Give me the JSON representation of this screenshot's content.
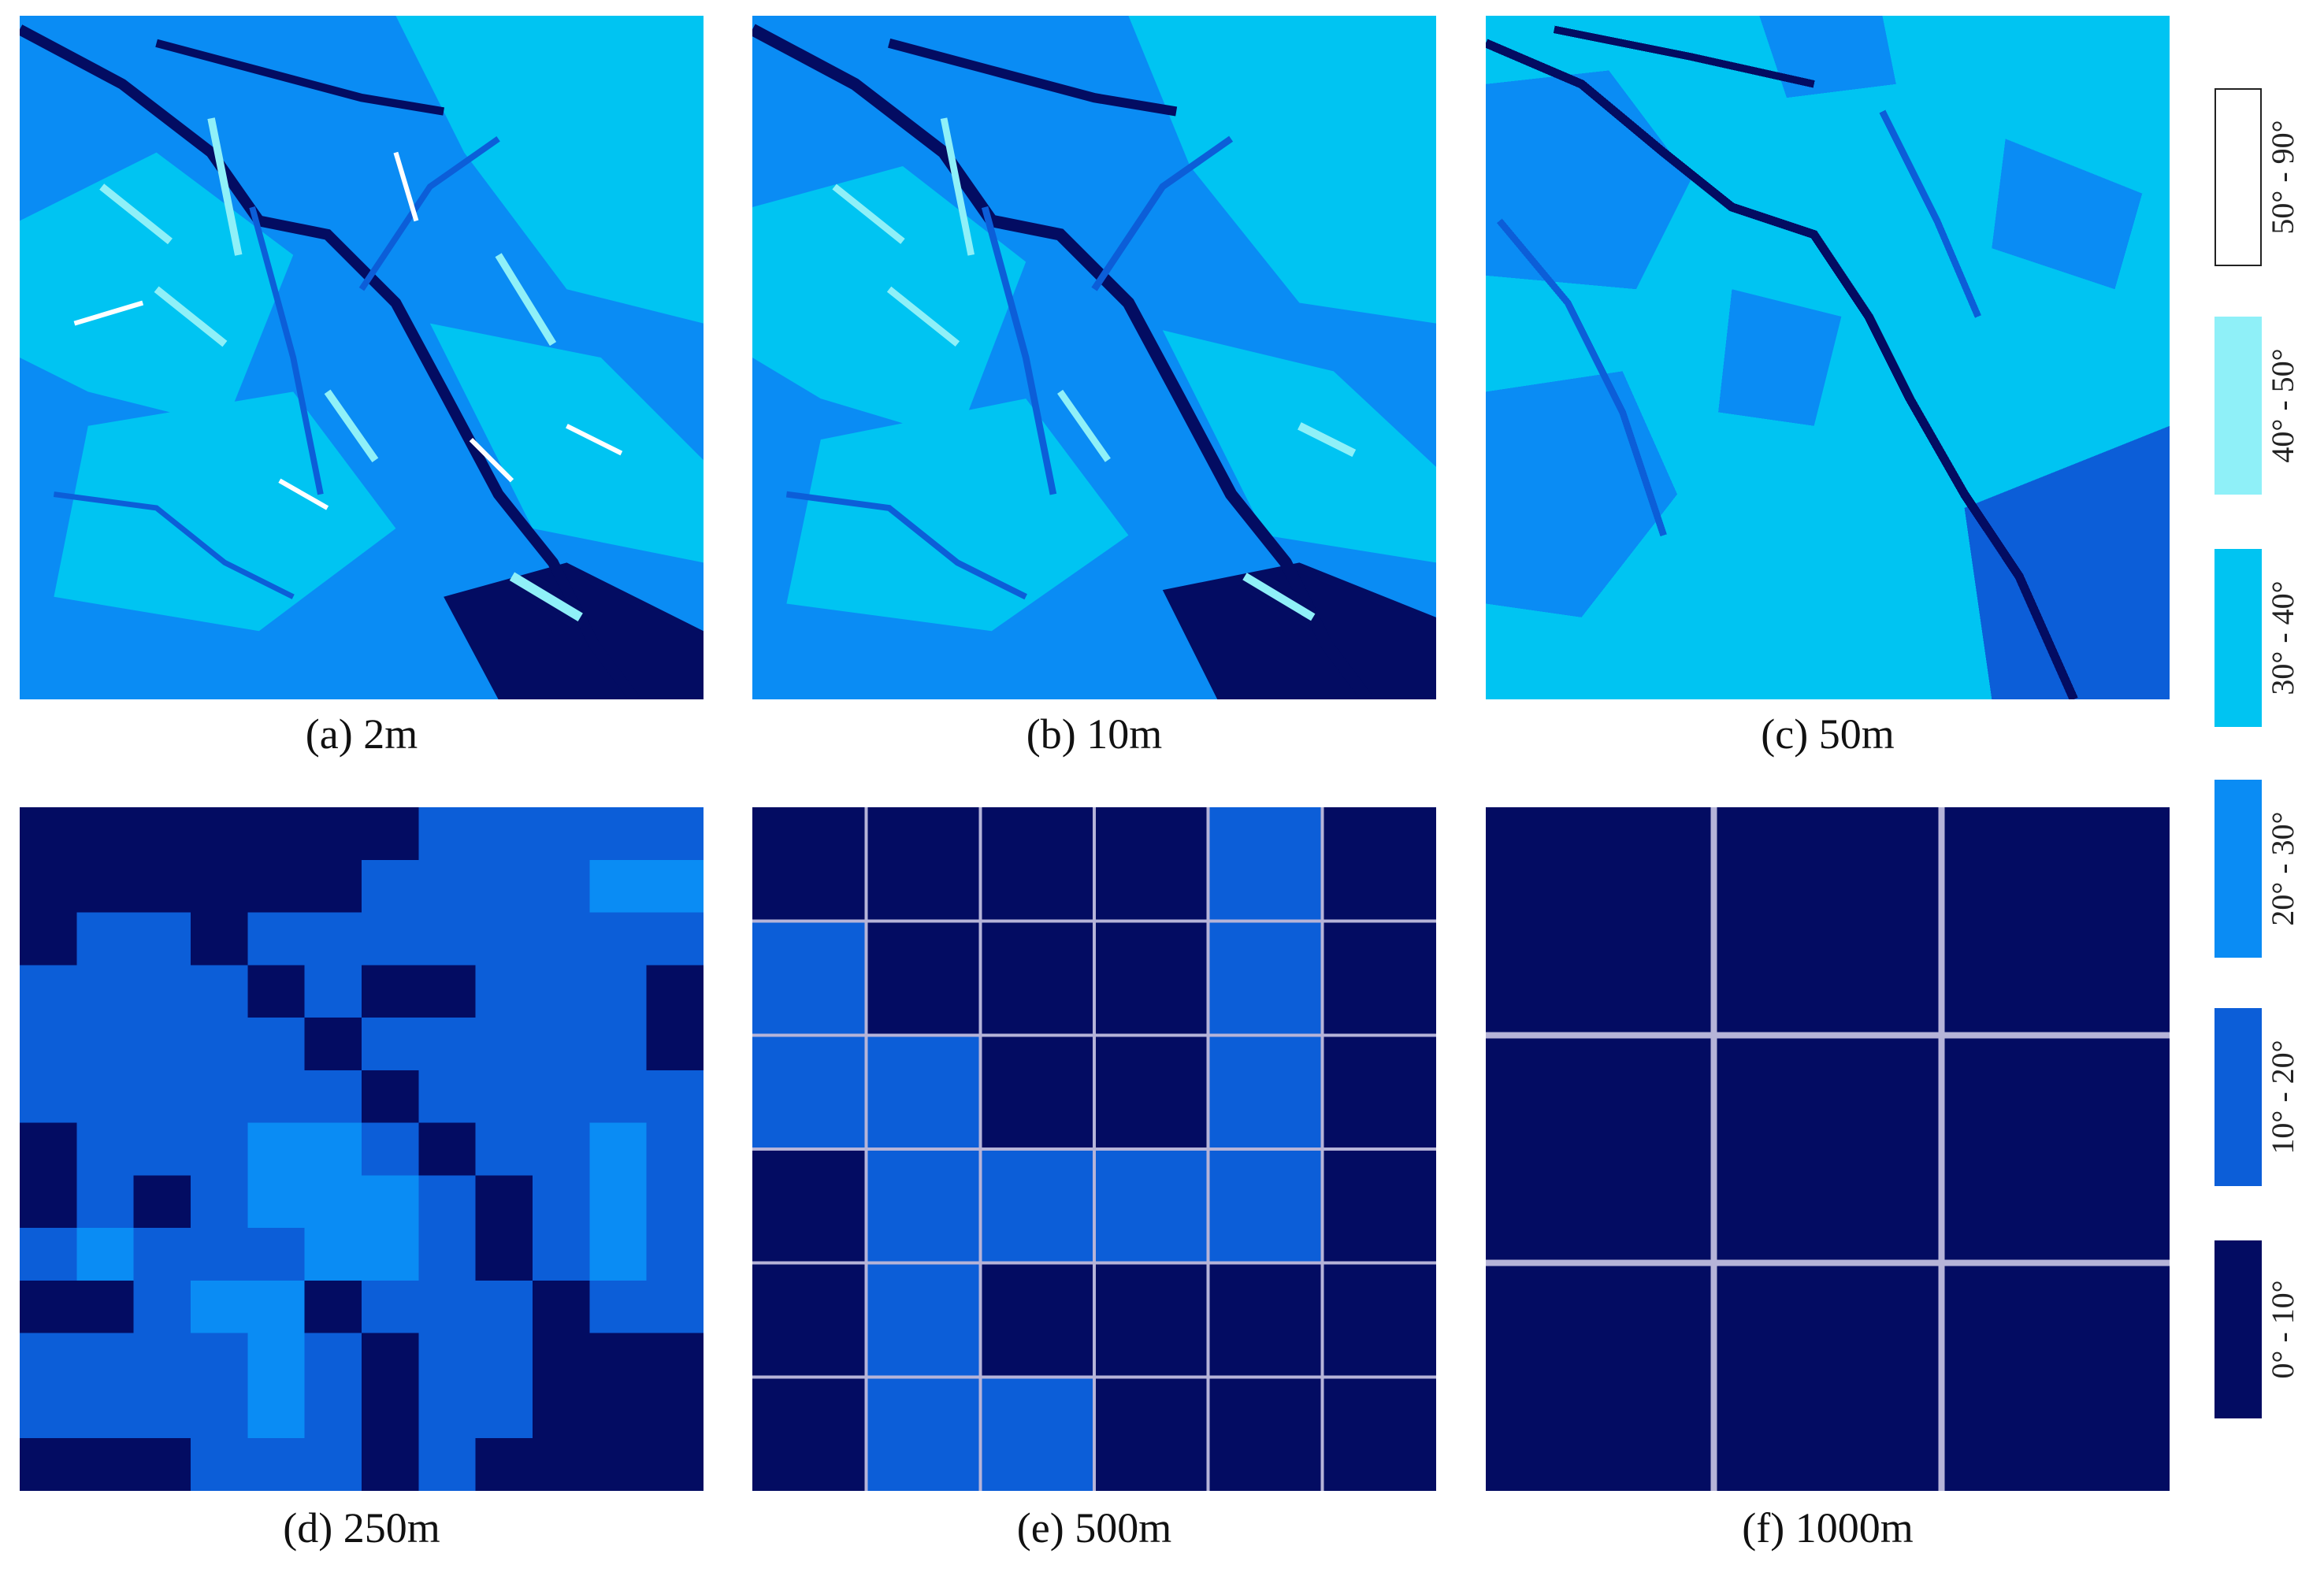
{
  "figure": {
    "panels": [
      {
        "id": "a",
        "caption": "(a) 2m",
        "resolution_m": 2
      },
      {
        "id": "b",
        "caption": "(b) 10m",
        "resolution_m": 10
      },
      {
        "id": "c",
        "caption": "(c) 50m",
        "resolution_m": 50
      },
      {
        "id": "d",
        "caption": "(d) 250m",
        "resolution_m": 250
      },
      {
        "id": "e",
        "caption": "(e) 500m",
        "resolution_m": 500
      },
      {
        "id": "f",
        "caption": "(f) 1000m",
        "resolution_m": 1000
      }
    ],
    "legend": [
      {
        "label": "50° - 90°",
        "color": "#ffffff"
      },
      {
        "label": "40° - 50°",
        "color": "#8ff0f8"
      },
      {
        "label": "30° - 40°",
        "color": "#00c4f2"
      },
      {
        "label": "20° - 30°",
        "color": "#0a8cf4"
      },
      {
        "label": "10° - 20°",
        "color": "#0c5ed8"
      },
      {
        "label": "0° - 10°",
        "color": "#030c62"
      }
    ],
    "grids": {
      "d": [
        [
          0,
          0,
          0,
          0,
          0,
          0,
          0,
          1,
          1,
          1,
          1,
          1
        ],
        [
          0,
          0,
          0,
          0,
          0,
          0,
          1,
          1,
          1,
          1,
          2,
          2
        ],
        [
          0,
          1,
          1,
          0,
          1,
          1,
          1,
          1,
          1,
          1,
          1,
          1
        ],
        [
          1,
          1,
          1,
          1,
          0,
          1,
          0,
          0,
          1,
          1,
          1,
          0
        ],
        [
          1,
          1,
          1,
          1,
          1,
          0,
          1,
          1,
          1,
          1,
          1,
          0
        ],
        [
          1,
          1,
          1,
          1,
          1,
          1,
          0,
          1,
          1,
          1,
          1,
          1
        ],
        [
          0,
          1,
          1,
          1,
          2,
          2,
          1,
          0,
          1,
          1,
          2,
          1
        ],
        [
          0,
          1,
          0,
          1,
          2,
          2,
          2,
          1,
          0,
          1,
          2,
          1
        ],
        [
          1,
          2,
          1,
          1,
          1,
          2,
          2,
          1,
          0,
          1,
          2,
          1
        ],
        [
          0,
          0,
          1,
          2,
          2,
          0,
          1,
          1,
          1,
          0,
          1,
          1
        ],
        [
          1,
          1,
          1,
          1,
          2,
          1,
          0,
          1,
          1,
          0,
          0,
          0
        ],
        [
          1,
          1,
          1,
          1,
          2,
          1,
          0,
          1,
          1,
          0,
          0,
          0
        ],
        [
          0,
          0,
          0,
          1,
          1,
          1,
          0,
          1,
          0,
          0,
          0,
          0
        ]
      ],
      "e": [
        [
          0,
          0,
          0,
          0,
          1,
          0
        ],
        [
          1,
          0,
          0,
          0,
          1,
          0
        ],
        [
          1,
          1,
          0,
          0,
          1,
          0
        ],
        [
          0,
          1,
          1,
          1,
          1,
          0
        ],
        [
          0,
          1,
          0,
          0,
          0,
          0
        ],
        [
          0,
          1,
          1,
          0,
          0,
          0
        ]
      ],
      "f": [
        [
          0,
          0,
          0
        ],
        [
          0,
          0,
          0
        ],
        [
          0,
          0,
          0
        ]
      ]
    }
  }
}
